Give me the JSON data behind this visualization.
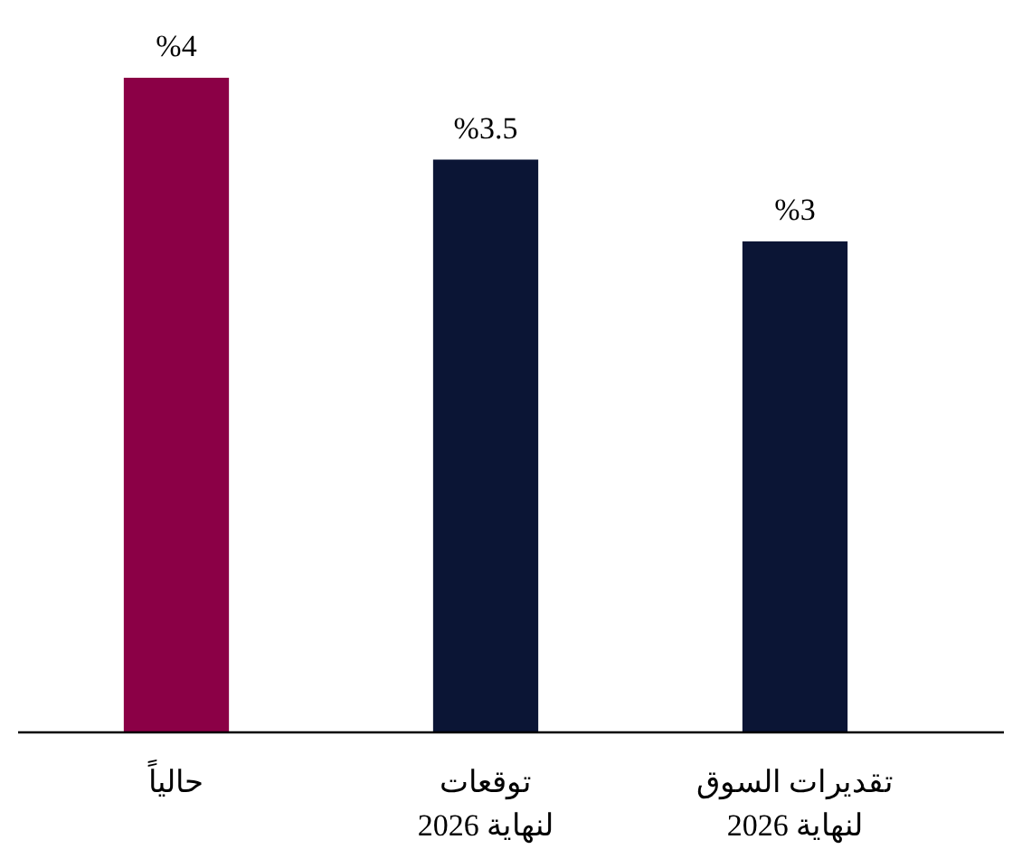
{
  "chart_data": {
    "type": "bar",
    "categories": [
      "حالياً",
      "توقعات\nلنهاية 2026",
      "تقديرات السوق\nلنهاية 2026"
    ],
    "values": [
      4,
      3.5,
      3
    ],
    "colors": [
      "#8b0046",
      "#0b1535",
      "#0b1535"
    ],
    "value_labels": [
      "%4",
      "%3.5",
      "%3"
    ]
  }
}
